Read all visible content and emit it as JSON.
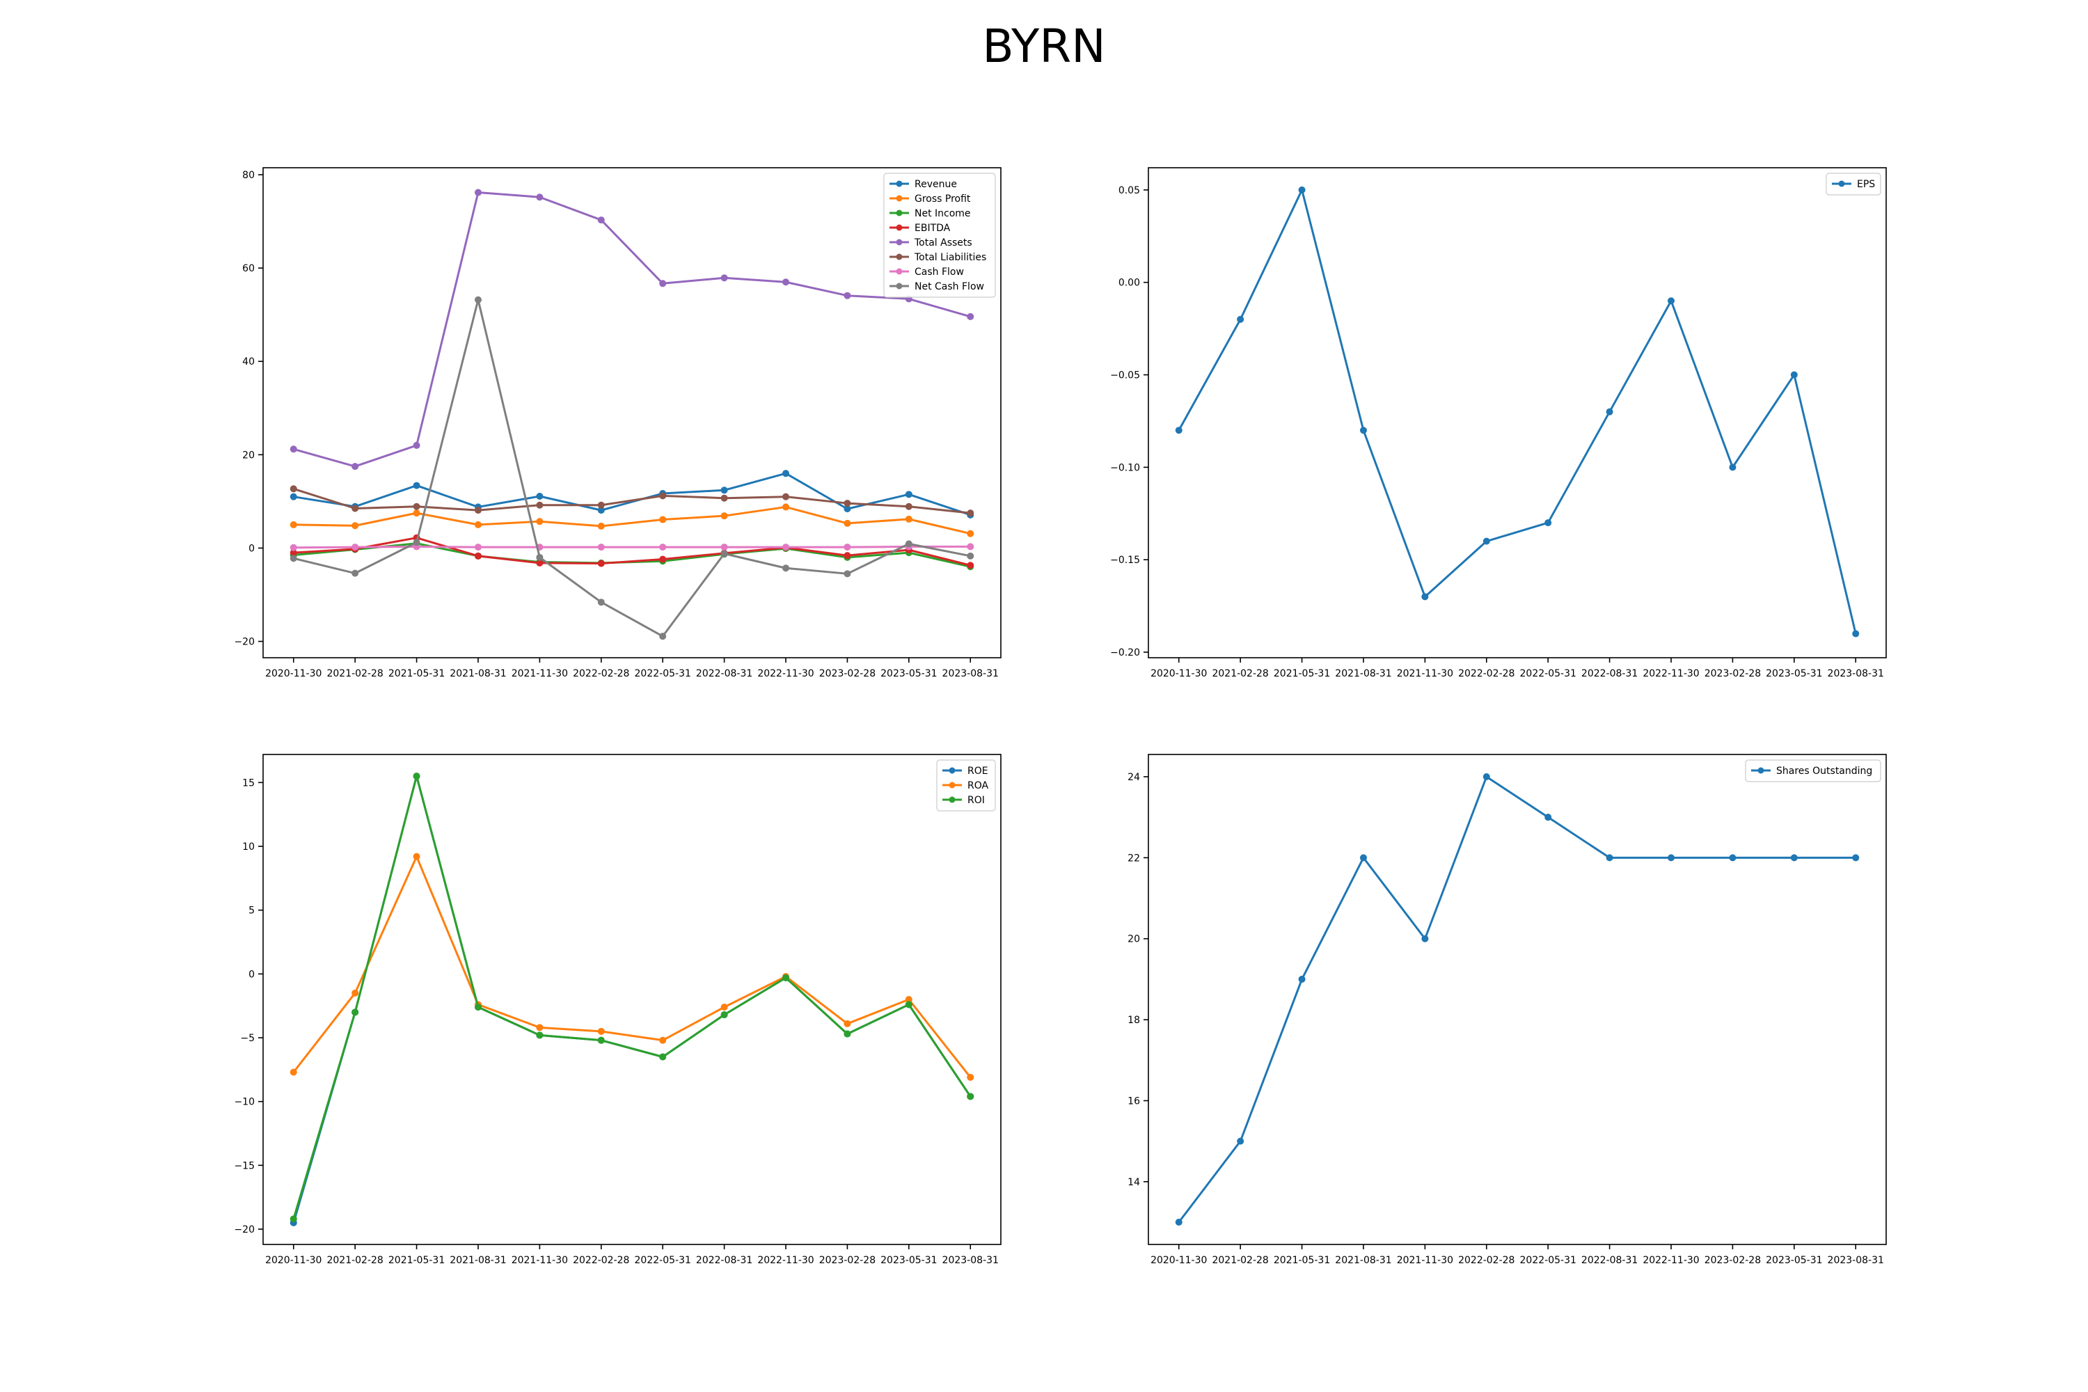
{
  "figure": {
    "title": "BYRN"
  },
  "chart_data": [
    {
      "type": "line",
      "id": "financials",
      "x": [
        "2020-11-30",
        "2021-02-28",
        "2021-05-31",
        "2021-08-31",
        "2021-11-30",
        "2022-02-28",
        "2022-05-31",
        "2022-08-31",
        "2022-11-30",
        "2023-02-28",
        "2023-05-31",
        "2023-08-31"
      ],
      "ylim": [
        -23.5,
        81.5
      ],
      "yticks": [
        -20,
        0,
        20,
        40,
        60,
        80
      ],
      "ytick_labels": [
        "−20",
        "0",
        "20",
        "40",
        "60",
        "80"
      ],
      "legend": "top-right",
      "series": [
        {
          "name": "Revenue",
          "color": "#1f77b4",
          "values": [
            11.0,
            8.9,
            13.4,
            8.8,
            11.1,
            8.1,
            11.7,
            12.4,
            16.0,
            8.4,
            11.5,
            7.1
          ]
        },
        {
          "name": "Gross Profit",
          "color": "#ff7f0e",
          "values": [
            5.0,
            4.8,
            7.5,
            5.0,
            5.7,
            4.7,
            6.1,
            6.9,
            8.8,
            5.3,
            6.2,
            3.1
          ]
        },
        {
          "name": "Net Income",
          "color": "#2ca02c",
          "values": [
            -1.5,
            -0.3,
            1.0,
            -1.7,
            -3.0,
            -3.2,
            -2.8,
            -1.3,
            -0.1,
            -2.0,
            -1.0,
            -4.0
          ]
        },
        {
          "name": "EBITDA",
          "color": "#d62728",
          "values": [
            -1.0,
            -0.2,
            2.2,
            -1.7,
            -3.2,
            -3.3,
            -2.4,
            -1.1,
            0.1,
            -1.6,
            -0.4,
            -3.7
          ]
        },
        {
          "name": "Total Assets",
          "color": "#9467bd",
          "values": [
            21.2,
            17.5,
            22.0,
            76.2,
            75.2,
            70.3,
            56.7,
            57.9,
            57.0,
            54.1,
            53.4,
            49.6
          ]
        },
        {
          "name": "Total Liabilities",
          "color": "#8c564b",
          "values": [
            12.7,
            8.5,
            8.9,
            8.1,
            9.2,
            9.2,
            11.2,
            10.7,
            11.0,
            9.6,
            8.9,
            7.5
          ]
        },
        {
          "name": "Cash Flow",
          "color": "#e377c2",
          "values": [
            0.1,
            0.2,
            0.3,
            0.2,
            0.2,
            0.2,
            0.2,
            0.2,
            0.2,
            0.2,
            0.3,
            0.3
          ]
        },
        {
          "name": "Net Cash Flow",
          "color": "#7f7f7f",
          "values": [
            -2.2,
            -5.4,
            1.2,
            53.2,
            -2.0,
            -11.6,
            -18.9,
            -1.2,
            -4.3,
            -5.5,
            0.9,
            -1.7
          ]
        }
      ]
    },
    {
      "type": "line",
      "id": "eps",
      "x": [
        "2020-11-30",
        "2021-02-28",
        "2021-05-31",
        "2021-08-31",
        "2021-11-30",
        "2022-02-28",
        "2022-05-31",
        "2022-08-31",
        "2022-11-30",
        "2023-02-28",
        "2023-05-31",
        "2023-08-31"
      ],
      "ylim": [
        -0.203,
        0.062
      ],
      "yticks": [
        -0.2,
        -0.15,
        -0.1,
        -0.05,
        0.0,
        0.05
      ],
      "ytick_labels": [
        "−0.20",
        "−0.15",
        "−0.10",
        "−0.05",
        "0.00",
        "0.05"
      ],
      "legend": "top-right",
      "series": [
        {
          "name": "EPS",
          "color": "#1f77b4",
          "values": [
            -0.08,
            -0.02,
            0.05,
            -0.08,
            -0.17,
            -0.14,
            -0.13,
            -0.07,
            -0.01,
            -0.1,
            -0.05,
            -0.19
          ]
        }
      ]
    },
    {
      "type": "line",
      "id": "returns",
      "x": [
        "2020-11-30",
        "2021-02-28",
        "2021-05-31",
        "2021-08-31",
        "2021-11-30",
        "2022-02-28",
        "2022-05-31",
        "2022-08-31",
        "2022-11-30",
        "2023-02-28",
        "2023-05-31",
        "2023-08-31"
      ],
      "ylim": [
        -21.2,
        17.2
      ],
      "yticks": [
        -20,
        -15,
        -10,
        -5,
        0,
        5,
        10,
        15
      ],
      "ytick_labels": [
        "−20",
        "−15",
        "−10",
        "−5",
        "0",
        "5",
        "10",
        "15"
      ],
      "legend": "top-right",
      "series": [
        {
          "name": "ROE",
          "color": "#1f77b4",
          "values": [
            -19.5,
            -3.0,
            15.5,
            -2.6,
            -4.8,
            -5.2,
            -6.5,
            -3.2,
            -0.3,
            -4.7,
            -2.4,
            -9.6
          ]
        },
        {
          "name": "ROA",
          "color": "#ff7f0e",
          "values": [
            -7.7,
            -1.5,
            9.2,
            -2.4,
            -4.2,
            -4.5,
            -5.2,
            -2.6,
            -0.2,
            -3.9,
            -2.0,
            -8.1
          ]
        },
        {
          "name": "ROI",
          "color": "#2ca02c",
          "values": [
            -19.2,
            -3.0,
            15.5,
            -2.6,
            -4.8,
            -5.2,
            -6.5,
            -3.2,
            -0.3,
            -4.7,
            -2.4,
            -9.6
          ]
        }
      ]
    },
    {
      "type": "line",
      "id": "shares",
      "x": [
        "2020-11-30",
        "2021-02-28",
        "2021-05-31",
        "2021-08-31",
        "2021-11-30",
        "2022-02-28",
        "2022-05-31",
        "2022-08-31",
        "2022-11-30",
        "2023-02-28",
        "2023-05-31",
        "2023-08-31"
      ],
      "ylim": [
        12.45,
        24.55
      ],
      "yticks": [
        14,
        16,
        18,
        20,
        22,
        24
      ],
      "ytick_labels": [
        "14",
        "16",
        "18",
        "20",
        "22",
        "24"
      ],
      "legend": "top-right",
      "series": [
        {
          "name": "Shares Outstanding",
          "color": "#1f77b4",
          "values": [
            13,
            15,
            19,
            22,
            20,
            24,
            23,
            22,
            22,
            22,
            22,
            22
          ]
        }
      ]
    }
  ]
}
